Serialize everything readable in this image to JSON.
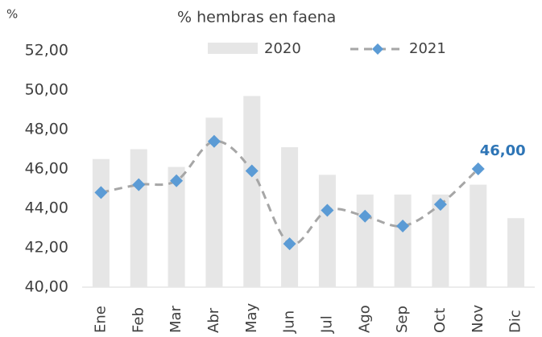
{
  "chart_data": {
    "type": "bar_line",
    "title": "% hembras en faena",
    "y_unit": "%",
    "categories": [
      "Ene",
      "Feb",
      "Mar",
      "Abr",
      "May",
      "Jun",
      "Jul",
      "Ago",
      "Sep",
      "Oct",
      "Nov",
      "Dic"
    ],
    "series": [
      {
        "name": "2020",
        "type": "bar",
        "color": "#e6e6e6",
        "values": [
          46.5,
          47.0,
          46.1,
          48.6,
          49.7,
          47.1,
          45.7,
          44.7,
          44.7,
          44.7,
          45.2,
          43.5
        ]
      },
      {
        "name": "2021",
        "type": "line",
        "color": "#a6a6a6",
        "marker_color": "#5b9bd5",
        "values": [
          44.8,
          45.2,
          45.4,
          47.4,
          45.9,
          42.2,
          43.9,
          43.6,
          43.1,
          44.2,
          46.0,
          null
        ],
        "value_labels": [
          null,
          null,
          null,
          null,
          null,
          null,
          null,
          null,
          null,
          null,
          "46,00",
          null
        ]
      }
    ],
    "ylim": [
      40,
      52
    ],
    "yticks": [
      {
        "value": 40,
        "label": "40,00"
      },
      {
        "value": 42,
        "label": "42,00"
      },
      {
        "value": 44,
        "label": "44,00"
      },
      {
        "value": 46,
        "label": "46,00"
      },
      {
        "value": 48,
        "label": "48,00"
      },
      {
        "value": 50,
        "label": "50,00"
      },
      {
        "value": 52,
        "label": "52,00"
      }
    ],
    "label_color": "#2e75b6"
  }
}
